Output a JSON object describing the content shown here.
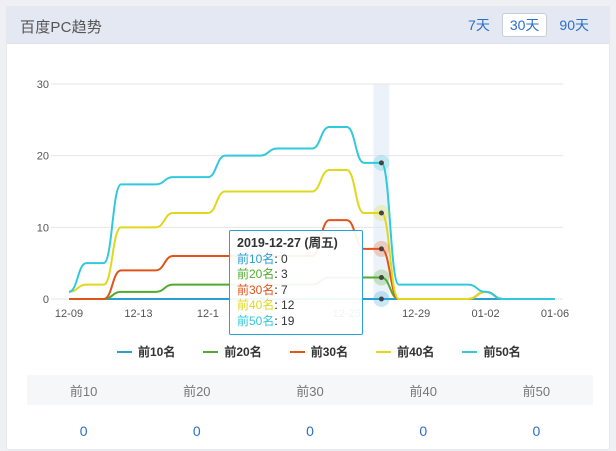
{
  "panel": {
    "title": "百度PC趋势",
    "tabs": [
      {
        "label": "7天",
        "active": false
      },
      {
        "label": "30天",
        "active": true
      },
      {
        "label": "90天",
        "active": false
      }
    ]
  },
  "colors": {
    "top10": "#2a9fd6",
    "top20": "#52ab2c",
    "top30": "#e2531a",
    "top40": "#e0d81c",
    "top50": "#31c9dc"
  },
  "chart_data": {
    "type": "line",
    "x": [
      "12-09",
      "12-10",
      "12-11",
      "12-12",
      "12-13",
      "12-14",
      "12-15",
      "12-16",
      "12-17",
      "12-18",
      "12-19",
      "12-20",
      "12-21",
      "12-22",
      "12-23",
      "12-24",
      "12-25",
      "12-26",
      "12-27",
      "12-28",
      "12-29",
      "12-30",
      "12-31",
      "01-01",
      "01-02",
      "01-03",
      "01-04",
      "01-05",
      "01-06"
    ],
    "x_tick_labels": [
      "12-09",
      "12-13",
      "12-1",
      "12-25",
      "12-29",
      "01-02",
      "01-06"
    ],
    "ylim": [
      0,
      30
    ],
    "y_ticks": [
      0,
      10,
      20,
      30
    ],
    "grid": true,
    "legend_position": "bottom",
    "highlight_index": 18,
    "series": [
      {
        "name": "前10名",
        "color_key": "top10",
        "values": [
          0,
          0,
          0,
          0,
          0,
          0,
          0,
          0,
          0,
          0,
          0,
          0,
          0,
          0,
          0,
          0,
          0,
          0,
          0,
          0,
          0,
          0,
          0,
          0,
          0,
          0,
          0,
          0,
          0
        ]
      },
      {
        "name": "前20名",
        "color_key": "top20",
        "values": [
          0,
          0,
          0,
          1,
          1,
          1,
          2,
          2,
          2,
          2,
          2,
          2,
          2,
          2,
          2,
          3,
          3,
          3,
          3,
          0,
          0,
          0,
          0,
          0,
          1,
          0,
          0,
          0,
          0
        ]
      },
      {
        "name": "前30名",
        "color_key": "top30",
        "values": [
          0,
          0,
          0,
          4,
          4,
          4,
          6,
          6,
          6,
          6,
          6,
          6,
          6,
          6,
          6,
          11,
          11,
          7,
          7,
          0,
          0,
          0,
          0,
          0,
          1,
          0,
          0,
          0,
          0
        ]
      },
      {
        "name": "前40名",
        "color_key": "top40",
        "values": [
          1,
          2,
          2,
          10,
          10,
          10,
          12,
          12,
          12,
          15,
          15,
          15,
          15,
          15,
          15,
          18,
          18,
          12,
          12,
          0,
          0,
          0,
          0,
          0,
          1,
          0,
          0,
          0,
          0
        ]
      },
      {
        "name": "前50名",
        "color_key": "top50",
        "values": [
          1,
          5,
          5,
          16,
          16,
          16,
          17,
          17,
          17,
          20,
          20,
          20,
          21,
          21,
          21,
          24,
          24,
          19,
          19,
          2,
          2,
          2,
          2,
          2,
          1,
          0,
          0,
          0,
          0
        ]
      }
    ]
  },
  "tooltip": {
    "date": "2019-12-27 (周五)",
    "rows": [
      {
        "label": "前10名",
        "value": "0",
        "color_key": "top10"
      },
      {
        "label": "前20名",
        "value": "3",
        "color_key": "top20"
      },
      {
        "label": "前30名",
        "value": "7",
        "color_key": "top30"
      },
      {
        "label": "前40名",
        "value": "12",
        "color_key": "top40"
      },
      {
        "label": "前50名",
        "value": "19",
        "color_key": "top50"
      }
    ]
  },
  "summary": {
    "headers": [
      "前10",
      "前20",
      "前30",
      "前40",
      "前50"
    ],
    "values": [
      "0",
      "0",
      "0",
      "0",
      "0"
    ]
  }
}
